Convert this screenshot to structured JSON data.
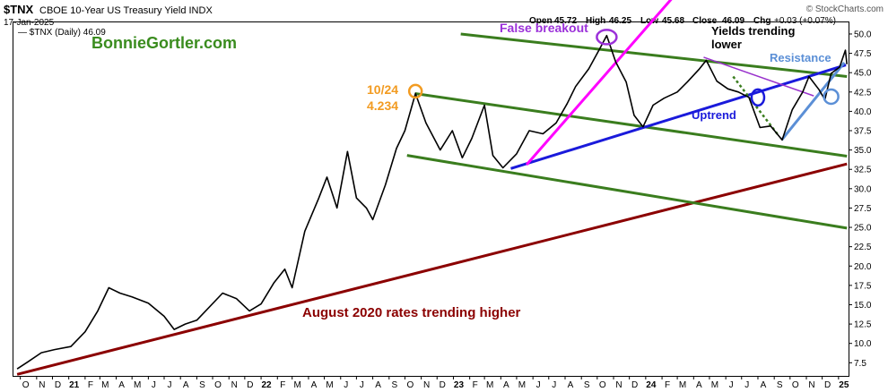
{
  "header": {
    "symbol": "$TNX",
    "description": "CBOE 10-Year US Treasury Yield INDX",
    "date": "17-Jan-2025",
    "credit": "© StockCharts.com",
    "ohlc": {
      "open_label": "Open",
      "open": "45.72",
      "high_label": "High",
      "high": "46.25",
      "low_label": "Low",
      "low": "45.68",
      "close_label": "Close",
      "close": "46.09",
      "chg_label": "Chg",
      "chg": "+0.03 (+0.07%)"
    },
    "legend_item": "— $TNX (Daily) 46.09",
    "watermark": "BonnieGortler.com"
  },
  "annotations": {
    "false_breakout": "False breakout",
    "yields_line1": "Yields trending",
    "yields_line2": "lower",
    "resistance": "Resistance",
    "uptrend": "Uptrend",
    "oct_label1": "10/24",
    "oct_label2": "4.234",
    "august": "August 2020 rates trending higher"
  },
  "colors": {
    "price": "#000000",
    "green_channel": "#3a7d1e",
    "magenta": "#ff00ff",
    "blue": "#1a1adb",
    "light_blue": "#5b8fd6",
    "dark_red": "#8b0000",
    "orange": "#f29b21",
    "purple": "#9b30d9",
    "violet_dotted_line": "#9932cc",
    "watermark": "#3a8c1e"
  },
  "chart_data": {
    "type": "line",
    "title": "$TNX CBOE 10-Year US Treasury Yield INDX",
    "series": [
      {
        "name": "$TNX (Daily)",
        "x": [
          "2020-09-25",
          "2020-10-15",
          "2020-11-10",
          "2020-12-05",
          "2021-01-05",
          "2021-02-01",
          "2021-02-25",
          "2021-03-18",
          "2021-04-08",
          "2021-05-01",
          "2021-06-01",
          "2021-07-01",
          "2021-07-20",
          "2021-08-10",
          "2021-09-01",
          "2021-10-20",
          "2021-11-15",
          "2021-12-10",
          "2022-01-01",
          "2022-01-25",
          "2022-02-15",
          "2022-03-01",
          "2022-03-25",
          "2022-04-20",
          "2022-05-06",
          "2022-05-25",
          "2022-06-14",
          "2022-07-01",
          "2022-07-20",
          "2022-08-01",
          "2022-08-25",
          "2022-09-15",
          "2022-10-01",
          "2022-10-21",
          "2022-11-10",
          "2022-12-07",
          "2022-12-30",
          "2023-01-18",
          "2023-02-05",
          "2023-03-01",
          "2023-03-17",
          "2023-04-05",
          "2023-05-01",
          "2023-05-25",
          "2023-06-20",
          "2023-07-15",
          "2023-08-05",
          "2023-08-21",
          "2023-09-15",
          "2023-10-05",
          "2023-10-19",
          "2023-11-05",
          "2023-11-25",
          "2023-12-10",
          "2023-12-27",
          "2024-01-15",
          "2024-02-05",
          "2024-03-01",
          "2024-03-20",
          "2024-04-12",
          "2024-04-25",
          "2024-05-15",
          "2024-06-05",
          "2024-06-25",
          "2024-07-15",
          "2024-08-05",
          "2024-08-25",
          "2024-09-16",
          "2024-10-05",
          "2024-10-25",
          "2024-11-06",
          "2024-11-25",
          "2024-12-06",
          "2024-12-18",
          "2025-01-03",
          "2025-01-14",
          "2025-01-17"
        ],
        "values": [
          6.7,
          7.6,
          8.8,
          9.2,
          9.6,
          11.5,
          14.2,
          17.2,
          16.5,
          16.0,
          15.2,
          13.5,
          11.8,
          12.5,
          13.0,
          16.5,
          15.8,
          14.2,
          15.1,
          17.8,
          19.6,
          17.2,
          24.5,
          28.7,
          31.5,
          27.5,
          34.8,
          28.8,
          27.5,
          26.0,
          30.5,
          35.2,
          37.5,
          42.3,
          38.5,
          35.0,
          37.5,
          34.0,
          36.5,
          40.8,
          34.3,
          32.7,
          34.5,
          37.5,
          37.1,
          38.5,
          41.0,
          43.2,
          45.5,
          48.0,
          49.8,
          46.4,
          43.8,
          39.5,
          38.0,
          40.8,
          41.7,
          42.5,
          43.8,
          45.5,
          46.6,
          43.9,
          42.9,
          42.5,
          41.8,
          37.9,
          38.1,
          36.3,
          40.2,
          42.5,
          44.5,
          42.8,
          41.5,
          44.9,
          45.7,
          47.9,
          46.09
        ]
      }
    ],
    "xlabel": "",
    "ylabel": "",
    "x_tick_labels": [
      "O",
      "N",
      "D",
      "21",
      "F",
      "M",
      "A",
      "M",
      "J",
      "J",
      "A",
      "S",
      "O",
      "N",
      "D",
      "22",
      "F",
      "M",
      "A",
      "M",
      "J",
      "J",
      "A",
      "S",
      "O",
      "N",
      "D",
      "23",
      "F",
      "M",
      "A",
      "M",
      "J",
      "J",
      "A",
      "S",
      "O",
      "N",
      "D",
      "24",
      "F",
      "M",
      "A",
      "M",
      "J",
      "J",
      "A",
      "S",
      "O",
      "N",
      "D",
      "25"
    ],
    "y_tick_labels": [
      "7.5",
      "10.0",
      "12.5",
      "15.0",
      "17.5",
      "20.0",
      "22.5",
      "25.0",
      "27.5",
      "30.0",
      "32.5",
      "35.0",
      "37.5",
      "40.0",
      "42.5",
      "45.0",
      "47.5",
      "50.0"
    ],
    "ylim": [
      5.8,
      51.5
    ],
    "xlim": [
      "2020-09-18",
      "2025-01-20"
    ],
    "y_axis_side": "right",
    "grid": false
  }
}
